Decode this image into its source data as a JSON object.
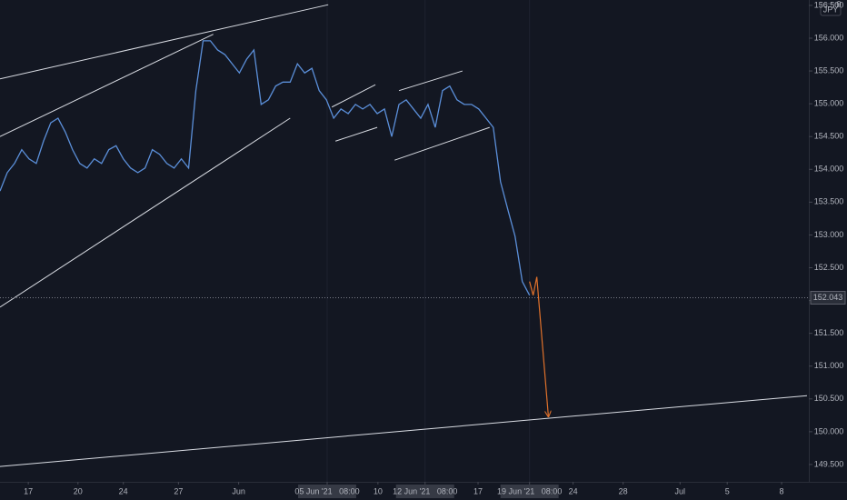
{
  "chart_data": {
    "type": "line",
    "currency": "JPY",
    "corner_label": "0",
    "color": "#5b8fd9",
    "background": "#131722",
    "x": [
      0,
      1,
      2,
      3,
      4,
      5,
      6,
      7,
      8,
      9,
      10,
      11,
      12,
      13,
      14,
      15,
      16,
      17,
      18,
      19,
      20,
      21,
      22,
      23,
      24,
      25,
      26,
      27,
      28,
      29,
      30,
      31,
      32,
      33,
      34,
      35,
      36,
      37,
      38,
      39,
      40,
      41,
      42,
      43,
      44,
      45,
      46,
      47,
      48,
      49,
      50,
      51,
      52,
      53,
      54,
      55,
      56,
      57,
      58,
      59,
      60,
      61,
      62,
      63,
      64,
      65,
      66,
      67,
      68,
      69,
      70,
      71,
      72,
      73
    ],
    "values": [
      153.67,
      153.95,
      154.09,
      154.3,
      154.16,
      154.09,
      154.43,
      154.71,
      154.78,
      154.57,
      154.3,
      154.09,
      154.02,
      154.16,
      154.09,
      154.3,
      154.36,
      154.16,
      154.02,
      153.95,
      154.02,
      154.3,
      154.23,
      154.09,
      154.02,
      154.16,
      154.02,
      155.2,
      155.96,
      155.96,
      155.82,
      155.75,
      155.61,
      155.47,
      155.68,
      155.82,
      154.99,
      155.06,
      155.27,
      155.33,
      155.33,
      155.61,
      155.47,
      155.54,
      155.2,
      155.06,
      154.78,
      154.92,
      154.85,
      154.99,
      154.92,
      154.99,
      154.85,
      154.92,
      154.5,
      154.99,
      155.06,
      154.92,
      154.78,
      154.99,
      154.64,
      155.2,
      155.27,
      155.06,
      154.99,
      154.99,
      154.92,
      154.78,
      154.64,
      153.81,
      153.39,
      152.98,
      152.29,
      152.08
    ],
    "last_price": 152.043,
    "xlim": [
      0,
      111.25
    ],
    "ylim": [
      149.236,
      156.582
    ],
    "yticks": [
      {
        "value": 149.5,
        "label": "149.500"
      },
      {
        "value": 150,
        "label": "150.000"
      },
      {
        "value": 150.5,
        "label": "150.500"
      },
      {
        "value": 151,
        "label": "151.000"
      },
      {
        "value": 151.5,
        "label": "151.500"
      },
      {
        "value": 152,
        "label": "152.000"
      },
      {
        "value": 152.5,
        "label": "152.500"
      },
      {
        "value": 153,
        "label": "153.000"
      },
      {
        "value": 153.5,
        "label": "153.500"
      },
      {
        "value": 154,
        "label": "154.000"
      },
      {
        "value": 154.5,
        "label": "154.500"
      },
      {
        "value": 155,
        "label": "155.000"
      },
      {
        "value": 155.5,
        "label": "155.500"
      },
      {
        "value": 156,
        "label": "156.000"
      },
      {
        "value": 156.5,
        "label": "156.500"
      }
    ],
    "xticks": [
      {
        "value": 3.9,
        "label": "17"
      },
      {
        "value": 10.75,
        "label": "20"
      },
      {
        "value": 17,
        "label": "24"
      },
      {
        "value": 24.6,
        "label": "27"
      },
      {
        "value": 32.9,
        "label": "Jun"
      },
      {
        "value": 45.1,
        "label": "05 Jun '21   08:00",
        "highlight": true
      },
      {
        "value": 52.1,
        "label": "10"
      },
      {
        "value": 58.6,
        "label": "12 Jun '21   08:00",
        "highlight": true
      },
      {
        "value": 65.9,
        "label": "17"
      },
      {
        "value": 73,
        "label": "19 Jun '21   08:00",
        "highlight": true
      },
      {
        "value": 79,
        "label": "24"
      },
      {
        "value": 85.9,
        "label": "28"
      },
      {
        "value": 93.75,
        "label": "Jul"
      },
      {
        "value": 100.25,
        "label": "5"
      },
      {
        "value": 107.75,
        "label": "8"
      }
    ],
    "trend_lines": [
      {
        "x": [
          0,
          45.25
        ],
        "y": [
          155.38,
          156.51
        ]
      },
      {
        "x": [
          0,
          29.4
        ],
        "y": [
          154.5,
          156.06
        ]
      },
      {
        "x": [
          0,
          40
        ],
        "y": [
          151.9,
          154.78
        ]
      },
      {
        "x": [
          45.75,
          51.75
        ],
        "y": [
          154.95,
          155.29
        ]
      },
      {
        "x": [
          46.25,
          52
        ],
        "y": [
          154.43,
          154.64
        ]
      },
      {
        "x": [
          55,
          63.75
        ],
        "y": [
          155.2,
          155.5
        ]
      },
      {
        "x": [
          54.4,
          67.5
        ],
        "y": [
          154.14,
          154.64
        ]
      },
      {
        "x": [
          0,
          111.25
        ],
        "y": [
          149.47,
          150.55
        ]
      }
    ],
    "trend_color": "#d9dce3",
    "projection": {
      "x": [
        73,
        73.5,
        74,
        75.6
      ],
      "y": [
        152.29,
        152.08,
        152.36,
        150.23
      ],
      "color": "#e0712b"
    }
  }
}
